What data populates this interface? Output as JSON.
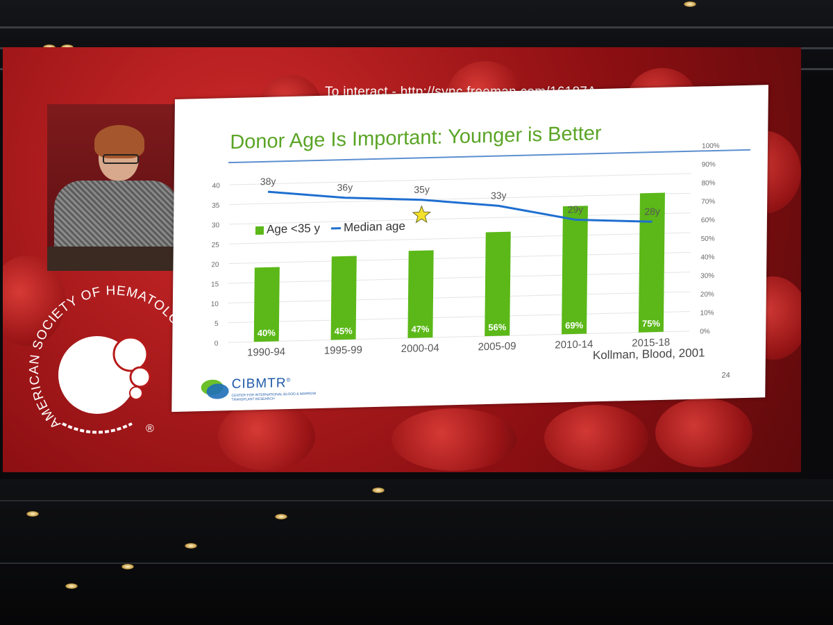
{
  "screen": {
    "interact_text": "To interact - http://sync.freeman.com/16187A",
    "logo_text": "AMERICAN SOCIETY OF HEMATOLOGY",
    "logo_mark": "®"
  },
  "slide": {
    "title": "Donor Age Is Important: Younger is Better",
    "legend": {
      "bar_label": "Age <35 y",
      "line_label": "Median age"
    },
    "citation": "Kollman, Blood, 2001",
    "page_number": "24",
    "cibmtr_name": "CIBMTR",
    "cibmtr_mark": "®",
    "cibmtr_subtitle": "CENTER FOR INTERNATIONAL BLOOD & MARROW TRANSPLANT RESEARCH"
  },
  "colors": {
    "bar": "#5bb818",
    "line": "#1f6fd0",
    "title": "#5aa425"
  },
  "chart_data": {
    "type": "bar",
    "categories": [
      "1990-94",
      "1995-99",
      "2000-04",
      "2005-09",
      "2010-14",
      "2015-18"
    ],
    "series": [
      {
        "name": "Age <35 y",
        "type": "bar",
        "axis": "right",
        "values": [
          40,
          45,
          47,
          56,
          69,
          75
        ],
        "data_labels": [
          "40%",
          "45%",
          "47%",
          "56%",
          "69%",
          "75%"
        ]
      },
      {
        "name": "Median age",
        "type": "line",
        "axis": "left",
        "values": [
          38,
          36,
          35,
          33,
          29,
          28
        ],
        "data_labels": [
          "38y",
          "36y",
          "35y",
          "33y",
          "29y",
          "28y"
        ]
      }
    ],
    "left_axis": {
      "ylim": [
        0,
        40
      ],
      "ticks": [
        "0",
        "5",
        "10",
        "15",
        "20",
        "25",
        "30",
        "35",
        "40"
      ]
    },
    "right_axis": {
      "ylim": [
        0,
        100
      ],
      "ticks": [
        "0%",
        "10%",
        "20%",
        "30%",
        "40%",
        "50%",
        "60%",
        "70%",
        "80%",
        "90%",
        "100%"
      ]
    },
    "annotation": "star marker near 2000-04",
    "grid": true
  }
}
